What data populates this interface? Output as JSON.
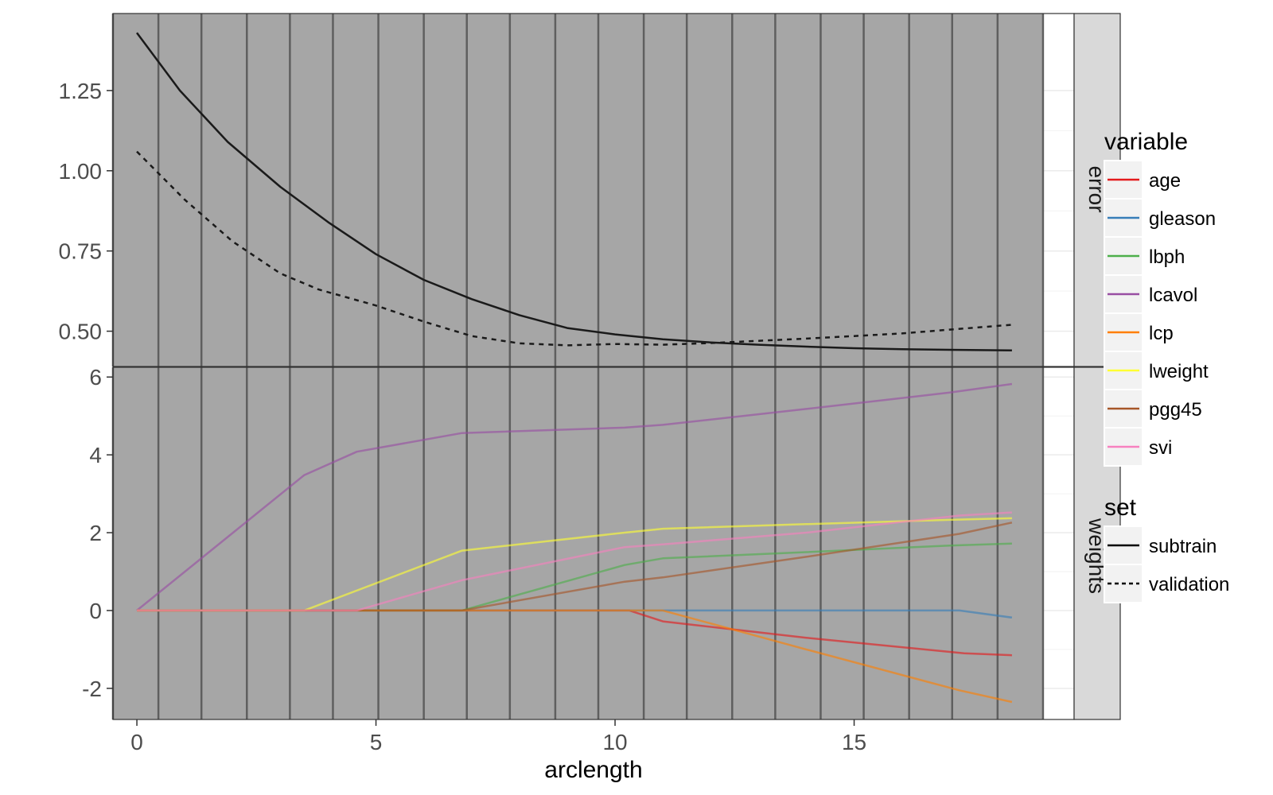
{
  "chart_data": {
    "type": "line",
    "xlabel": "arclength",
    "xlim": [
      -0.5,
      19.6
    ],
    "x_ticks": [
      0,
      5,
      10,
      15
    ],
    "facets": [
      {
        "name": "error",
        "ylim": [
          0.39,
          1.49
        ],
        "y_ticks": [
          0.5,
          0.75,
          1.0,
          1.25
        ],
        "y_tick_labels": [
          "0.50",
          "0.75",
          "1.00",
          "1.25"
        ],
        "series": [
          {
            "name": "subtrain",
            "legend": "set",
            "color": "#1a1a1a",
            "dash": "solid",
            "points": [
              [
                0,
                1.43
              ],
              [
                0.9,
                1.25
              ],
              [
                1.9,
                1.09
              ],
              [
                3.0,
                0.95
              ],
              [
                4.0,
                0.84
              ],
              [
                5.0,
                0.74
              ],
              [
                6.0,
                0.66
              ],
              [
                7.0,
                0.6
              ],
              [
                8.0,
                0.55
              ],
              [
                9.0,
                0.51
              ],
              [
                10.0,
                0.49
              ],
              [
                11.0,
                0.475
              ],
              [
                12.0,
                0.465
              ],
              [
                13.0,
                0.458
              ],
              [
                14.0,
                0.452
              ],
              [
                15.0,
                0.447
              ],
              [
                16.0,
                0.444
              ],
              [
                17.0,
                0.442
              ],
              [
                18.3,
                0.44
              ]
            ]
          },
          {
            "name": "validation",
            "legend": "set",
            "color": "#1a1a1a",
            "dash": "dotted",
            "points": [
              [
                0,
                1.06
              ],
              [
                1.0,
                0.91
              ],
              [
                2.0,
                0.78
              ],
              [
                3.0,
                0.68
              ],
              [
                3.8,
                0.63
              ],
              [
                5.0,
                0.58
              ],
              [
                6.0,
                0.53
              ],
              [
                7.0,
                0.485
              ],
              [
                8.0,
                0.462
              ],
              [
                9.0,
                0.456
              ],
              [
                10.0,
                0.46
              ],
              [
                11.0,
                0.458
              ],
              [
                12.0,
                0.463
              ],
              [
                13.0,
                0.47
              ],
              [
                14.0,
                0.477
              ],
              [
                15.0,
                0.485
              ],
              [
                16.0,
                0.493
              ],
              [
                17.0,
                0.505
              ],
              [
                18.3,
                0.52
              ]
            ]
          }
        ]
      },
      {
        "name": "weights",
        "ylim": [
          -2.8,
          6.25
        ],
        "y_ticks": [
          -2,
          0,
          2,
          4,
          6
        ],
        "y_tick_labels": [
          "-2",
          "0",
          "2",
          "4",
          "6"
        ],
        "series": [
          {
            "name": "age",
            "color": "#E41A1C",
            "points": [
              [
                0,
                0
              ],
              [
                10.3,
                0
              ],
              [
                11.0,
                -0.28
              ],
              [
                14.0,
                -0.7
              ],
              [
                17.3,
                -1.1
              ],
              [
                18.3,
                -1.15
              ]
            ]
          },
          {
            "name": "gleason",
            "color": "#377EB8",
            "points": [
              [
                0,
                0
              ],
              [
                17.2,
                0
              ],
              [
                18.3,
                -0.18
              ]
            ]
          },
          {
            "name": "lbph",
            "color": "#4DAF4A",
            "points": [
              [
                0,
                0
              ],
              [
                6.8,
                0
              ],
              [
                10.2,
                1.17
              ],
              [
                11.0,
                1.34
              ],
              [
                14.0,
                1.5
              ],
              [
                17.0,
                1.67
              ],
              [
                18.3,
                1.72
              ]
            ]
          },
          {
            "name": "lcavol",
            "color": "#984EA3",
            "points": [
              [
                0,
                0
              ],
              [
                3.5,
                3.48
              ],
              [
                4.6,
                4.08
              ],
              [
                6.8,
                4.56
              ],
              [
                10.2,
                4.7
              ],
              [
                11.0,
                4.77
              ],
              [
                14.0,
                5.18
              ],
              [
                17.0,
                5.6
              ],
              [
                18.3,
                5.82
              ]
            ]
          },
          {
            "name": "lcp",
            "color": "#FF7F00",
            "points": [
              [
                0,
                0
              ],
              [
                11.0,
                0
              ],
              [
                14.0,
                -1.0
              ],
              [
                17.2,
                -2.05
              ],
              [
                18.3,
                -2.35
              ]
            ]
          },
          {
            "name": "lweight",
            "color": "#FFFF33",
            "points": [
              [
                0,
                0
              ],
              [
                3.5,
                0
              ],
              [
                6.8,
                1.54
              ],
              [
                10.2,
                2.0
              ],
              [
                11.0,
                2.1
              ],
              [
                14.0,
                2.22
              ],
              [
                17.0,
                2.33
              ],
              [
                18.3,
                2.37
              ]
            ]
          },
          {
            "name": "pgg45",
            "color": "#A65628",
            "points": [
              [
                0,
                0
              ],
              [
                6.8,
                0
              ],
              [
                10.2,
                0.74
              ],
              [
                11.0,
                0.85
              ],
              [
                14.0,
                1.38
              ],
              [
                17.2,
                1.97
              ],
              [
                18.3,
                2.26
              ]
            ]
          },
          {
            "name": "svi",
            "color": "#F781BF",
            "points": [
              [
                0,
                0
              ],
              [
                4.6,
                0
              ],
              [
                6.8,
                0.78
              ],
              [
                10.2,
                1.63
              ],
              [
                11.0,
                1.7
              ],
              [
                14.0,
                2.0
              ],
              [
                17.2,
                2.44
              ],
              [
                18.3,
                2.52
              ]
            ]
          }
        ]
      }
    ],
    "vertical_lines": [
      -0.5,
      0.45,
      1.35,
      2.3,
      3.2,
      4.1,
      5.05,
      6.0,
      6.9,
      7.8,
      8.75,
      9.65,
      10.6,
      11.5,
      12.45,
      13.35,
      14.3,
      15.2,
      16.15,
      17.05,
      18.0,
      18.95
    ],
    "shaded_region": [
      -0.5,
      18.95
    ],
    "legends": [
      {
        "title": "variable",
        "entries": [
          {
            "label": "age",
            "color": "#E41A1C",
            "dash": "solid"
          },
          {
            "label": "gleason",
            "color": "#377EB8",
            "dash": "solid"
          },
          {
            "label": "lbph",
            "color": "#4DAF4A",
            "dash": "solid"
          },
          {
            "label": "lcavol",
            "color": "#984EA3",
            "dash": "solid"
          },
          {
            "label": "lcp",
            "color": "#FF7F00",
            "dash": "solid"
          },
          {
            "label": "lweight",
            "color": "#FFFF33",
            "dash": "solid"
          },
          {
            "label": "pgg45",
            "color": "#A65628",
            "dash": "solid"
          },
          {
            "label": "svi",
            "color": "#F781BF",
            "dash": "solid"
          }
        ]
      },
      {
        "title": "set",
        "entries": [
          {
            "label": "subtrain",
            "color": "#000000",
            "dash": "solid"
          },
          {
            "label": "validation",
            "color": "#000000",
            "dash": "dotted"
          }
        ]
      }
    ],
    "grid": true,
    "legend_position": "right"
  }
}
